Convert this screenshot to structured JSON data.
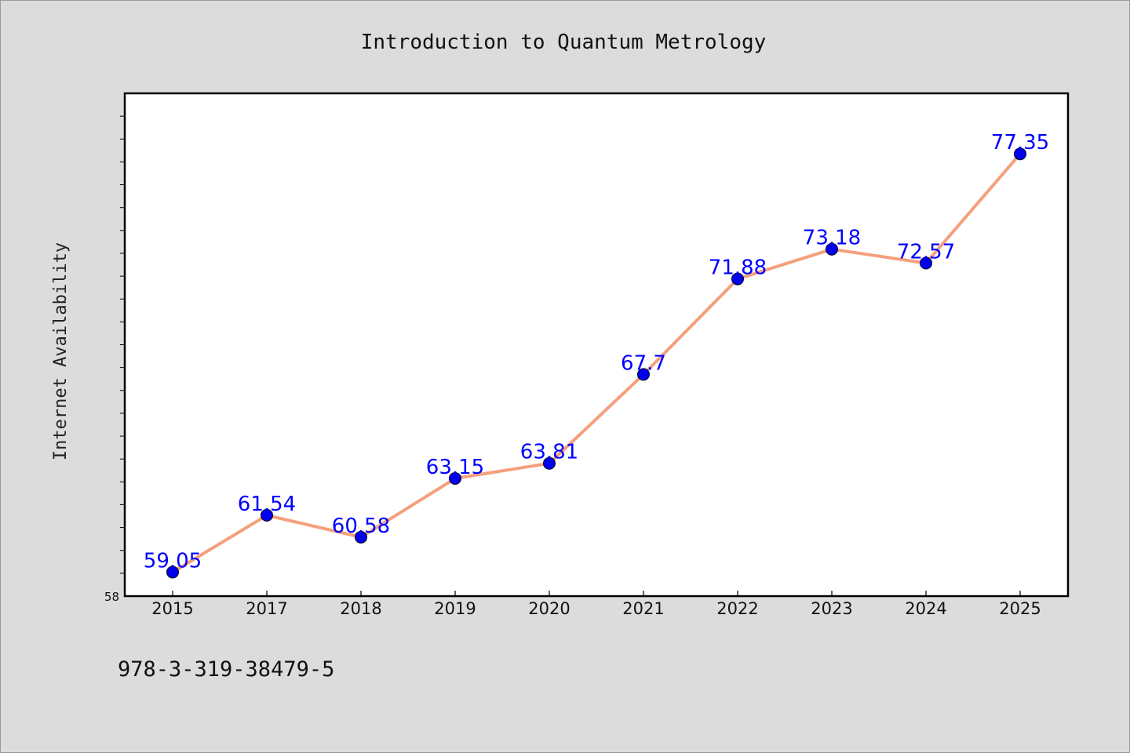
{
  "chart_data": {
    "type": "line",
    "title": "Introduction to Quantum Metrology",
    "ylabel": "Internet Availability",
    "xlabel": "",
    "categories": [
      "2015",
      "2017",
      "2018",
      "2019",
      "2020",
      "2021",
      "2022",
      "2023",
      "2024",
      "2025"
    ],
    "series": [
      {
        "values": [
          59.05,
          61.54,
          60.58,
          63.15,
          63.81,
          67.7,
          71.88,
          73.18,
          72.57,
          77.35
        ],
        "labels": [
          "59.05",
          "61.54",
          "60.58",
          "63.15",
          "63.81",
          "67.7",
          "71.88",
          "73.18",
          "72.57",
          "77.35"
        ],
        "line_color": "#f4a07c",
        "marker_color": "#0000ee"
      }
    ],
    "ylim": [
      58,
      80
    ],
    "y_tick_labels_shown": [
      "58"
    ],
    "y_minor_tick_step": 1,
    "grid": false,
    "legend": "none"
  },
  "footer": {
    "isbn": "978-3-319-38479-5"
  }
}
